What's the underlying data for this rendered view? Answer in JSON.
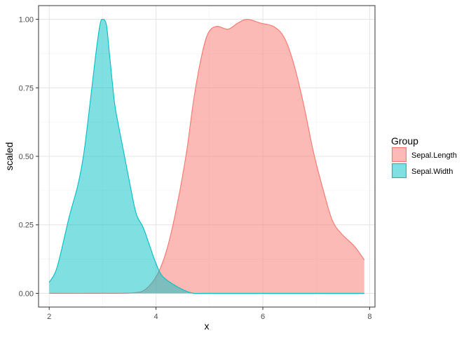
{
  "chart_data": {
    "type": "area",
    "title": "",
    "xlabel": "x",
    "ylabel": "scaled",
    "xlim": [
      1.8,
      8.1
    ],
    "ylim": [
      -0.05,
      1.05
    ],
    "x_ticks": [
      2,
      4,
      6,
      8
    ],
    "x_tick_labels": [
      "2",
      "4",
      "6",
      "8"
    ],
    "y_ticks": [
      0,
      0.25,
      0.5,
      0.75,
      1.0
    ],
    "y_tick_labels": [
      "0.00",
      "0.25",
      "0.50",
      "0.75",
      "1.00"
    ],
    "grid": true,
    "legend": {
      "title": "Group",
      "position": "right"
    },
    "series": [
      {
        "name": "Sepal.Length",
        "color": "#F8766D",
        "x": [
          2.0,
          3.0,
          3.58,
          3.81,
          4.03,
          4.21,
          4.39,
          4.57,
          4.7,
          4.84,
          4.97,
          5.13,
          5.35,
          5.53,
          5.71,
          5.96,
          6.21,
          6.41,
          6.59,
          6.77,
          6.95,
          7.13,
          7.3,
          7.48,
          7.71,
          7.9
        ],
        "y": [
          0.0,
          0.0,
          0.002,
          0.016,
          0.071,
          0.165,
          0.318,
          0.514,
          0.7,
          0.854,
          0.947,
          0.974,
          0.964,
          0.986,
          1.0,
          0.986,
          0.973,
          0.93,
          0.83,
          0.684,
          0.514,
          0.378,
          0.267,
          0.216,
          0.173,
          0.122
        ]
      },
      {
        "name": "Sepal.Width",
        "color": "#00BFC4",
        "x": [
          2.0,
          2.15,
          2.37,
          2.53,
          2.64,
          2.75,
          2.87,
          2.95,
          3.0,
          3.07,
          3.13,
          3.22,
          3.29,
          3.4,
          3.52,
          3.63,
          3.76,
          3.87,
          3.99,
          4.12,
          4.39,
          4.66,
          4.93,
          6.0,
          7.9
        ],
        "y": [
          0.04,
          0.097,
          0.276,
          0.39,
          0.5,
          0.67,
          0.87,
          0.98,
          1.0,
          0.98,
          0.87,
          0.7,
          0.62,
          0.51,
          0.39,
          0.29,
          0.24,
          0.18,
          0.114,
          0.063,
          0.025,
          0.002,
          0.0,
          0.0,
          0.0
        ]
      }
    ]
  }
}
